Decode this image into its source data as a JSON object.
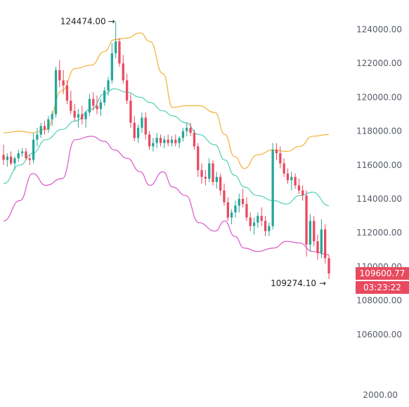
{
  "chart_data": {
    "type": "candlestick",
    "title": "",
    "xlabel": "",
    "ylabel": "",
    "ylim": [
      105000,
      125000
    ],
    "grid": false,
    "y_ticks": [
      "124000.00",
      "122000.00",
      "120000.00",
      "118000.00",
      "116000.00",
      "114000.00",
      "112000.00",
      "110000.00",
      "108000.00",
      "106000.00"
    ],
    "bottom_axis_label": "2000.00",
    "annotations": {
      "high": {
        "text": "124474.00",
        "value": 124474.0
      },
      "low": {
        "text": "109274.10",
        "value": 109274.1
      }
    },
    "last_price": {
      "text": "109600.77",
      "value": 109600.77,
      "color": "#e84a5f"
    },
    "countdown": {
      "text": "03:23:22",
      "color": "#e84a5f"
    },
    "colors": {
      "up": "#26a69a",
      "down": "#e84a5f",
      "upper_band": "#f2b134",
      "middle_band": "#4fd1b5",
      "lower_band": "#d957c8"
    },
    "candles": [
      [
        116600,
        117200,
        116000,
        116300
      ],
      [
        116300,
        116700,
        115900,
        116500
      ],
      [
        116500,
        116800,
        116000,
        116100
      ],
      [
        116100,
        116500,
        115700,
        116400
      ],
      [
        116400,
        116900,
        116200,
        116700
      ],
      [
        116700,
        117000,
        116500,
        116800
      ],
      [
        116800,
        117000,
        116300,
        116400
      ],
      [
        116400,
        116600,
        116000,
        116300
      ],
      [
        116300,
        117900,
        116100,
        117500
      ],
      [
        117500,
        118200,
        117100,
        117800
      ],
      [
        117800,
        118500,
        117600,
        118300
      ],
      [
        118300,
        118600,
        117800,
        118100
      ],
      [
        118100,
        118900,
        117900,
        118700
      ],
      [
        118700,
        119200,
        118300,
        119000
      ],
      [
        119000,
        121800,
        118800,
        121600
      ],
      [
        121600,
        122200,
        120600,
        121000
      ],
      [
        121000,
        121600,
        120200,
        120700
      ],
      [
        120700,
        121000,
        119600,
        119800
      ],
      [
        119800,
        120400,
        119000,
        119200
      ],
      [
        119200,
        119600,
        118600,
        118800
      ],
      [
        118800,
        119300,
        118200,
        119000
      ],
      [
        119000,
        119500,
        118400,
        118700
      ],
      [
        118700,
        119200,
        118200,
        119100
      ],
      [
        119100,
        120200,
        118900,
        119900
      ],
      [
        119900,
        120300,
        119200,
        119500
      ],
      [
        119500,
        120100,
        119000,
        119300
      ],
      [
        119300,
        119900,
        118900,
        119700
      ],
      [
        119700,
        120600,
        119500,
        120400
      ],
      [
        120400,
        121200,
        120100,
        121000
      ],
      [
        121000,
        123200,
        120800,
        122600
      ],
      [
        122600,
        124474,
        122300,
        123300
      ],
      [
        123300,
        123500,
        121800,
        122000
      ],
      [
        122000,
        122500,
        120800,
        121000
      ],
      [
        121000,
        121400,
        119600,
        119800
      ],
      [
        119800,
        120200,
        118200,
        118500
      ],
      [
        118500,
        118900,
        117400,
        117600
      ],
      [
        117600,
        118400,
        117300,
        118200
      ],
      [
        118200,
        119100,
        117900,
        118800
      ],
      [
        118800,
        119100,
        117500,
        117800
      ],
      [
        117800,
        118000,
        116900,
        117100
      ],
      [
        117100,
        117600,
        116800,
        117300
      ],
      [
        117300,
        117900,
        117000,
        117600
      ],
      [
        117600,
        117800,
        117100,
        117300
      ],
      [
        117300,
        117700,
        117000,
        117500
      ],
      [
        117500,
        117800,
        117100,
        117300
      ],
      [
        117300,
        117700,
        117100,
        117500
      ],
      [
        117500,
        117800,
        117100,
        117300
      ],
      [
        117300,
        117700,
        117000,
        117600
      ],
      [
        117600,
        118200,
        117400,
        118000
      ],
      [
        118000,
        118500,
        117700,
        118200
      ],
      [
        118200,
        118500,
        117700,
        117900
      ],
      [
        117900,
        118100,
        116900,
        117100
      ],
      [
        117100,
        117300,
        115300,
        115700
      ],
      [
        115700,
        116100,
        114900,
        115300
      ],
      [
        115300,
        115700,
        114800,
        115200
      ],
      [
        115200,
        116400,
        115000,
        116100
      ],
      [
        116100,
        116300,
        114800,
        115000
      ],
      [
        115000,
        115600,
        114600,
        115300
      ],
      [
        115300,
        115500,
        114200,
        114500
      ],
      [
        114500,
        114900,
        113600,
        113800
      ],
      [
        113800,
        114100,
        112700,
        112900
      ],
      [
        112900,
        113400,
        112500,
        113200
      ],
      [
        113200,
        113900,
        112900,
        113600
      ],
      [
        113600,
        114300,
        113200,
        114000
      ],
      [
        114000,
        114600,
        113500,
        113700
      ],
      [
        113700,
        114100,
        112700,
        112900
      ],
      [
        112900,
        113200,
        112100,
        112400
      ],
      [
        112400,
        112900,
        111900,
        112600
      ],
      [
        112600,
        113200,
        112300,
        113000
      ],
      [
        113000,
        113500,
        112400,
        112700
      ],
      [
        112700,
        113000,
        111800,
        112100
      ],
      [
        112100,
        112600,
        111800,
        112400
      ],
      [
        112400,
        117300,
        112200,
        116900
      ],
      [
        116900,
        117300,
        116300,
        116700
      ],
      [
        116700,
        117100,
        115800,
        116100
      ],
      [
        116100,
        116400,
        115300,
        115500
      ],
      [
        115500,
        115800,
        114900,
        115100
      ],
      [
        115100,
        115600,
        114500,
        115300
      ],
      [
        115300,
        115500,
        114600,
        114800
      ],
      [
        114800,
        115200,
        114300,
        114500
      ],
      [
        114500,
        114800,
        113900,
        114200
      ],
      [
        114200,
        114500,
        110600,
        111300
      ],
      [
        111300,
        113100,
        110900,
        112700
      ],
      [
        112700,
        113000,
        111200,
        111500
      ],
      [
        111500,
        111900,
        110400,
        110800
      ],
      [
        110800,
        112800,
        110500,
        112200
      ],
      [
        112200,
        112500,
        110200,
        110500
      ],
      [
        110500,
        110700,
        109274,
        109600
      ]
    ],
    "upper_band": [
      [
        0,
        117900
      ],
      [
        0.05,
        118000
      ],
      [
        0.09,
        117900
      ],
      [
        0.13,
        118100
      ],
      [
        0.18,
        120400
      ],
      [
        0.22,
        121700
      ],
      [
        0.27,
        121900
      ],
      [
        0.31,
        122700
      ],
      [
        0.34,
        123400
      ],
      [
        0.38,
        123500
      ],
      [
        0.42,
        123800
      ],
      [
        0.45,
        123300
      ],
      [
        0.49,
        121400
      ],
      [
        0.52,
        119400
      ],
      [
        0.56,
        119500
      ],
      [
        0.6,
        119500
      ],
      [
        0.65,
        119100
      ],
      [
        0.68,
        117800
      ],
      [
        0.71,
        116500
      ],
      [
        0.74,
        115800
      ],
      [
        0.78,
        116600
      ],
      [
        0.83,
        116900
      ],
      [
        0.87,
        116800
      ],
      [
        0.91,
        117100
      ],
      [
        0.95,
        117700
      ],
      [
        1,
        117800
      ]
    ],
    "middle_band": [
      [
        0,
        114900
      ],
      [
        0.05,
        116000
      ],
      [
        0.09,
        116700
      ],
      [
        0.13,
        117500
      ],
      [
        0.18,
        118100
      ],
      [
        0.22,
        118600
      ],
      [
        0.27,
        119300
      ],
      [
        0.31,
        120200
      ],
      [
        0.34,
        120500
      ],
      [
        0.38,
        120300
      ],
      [
        0.42,
        120000
      ],
      [
        0.45,
        119700
      ],
      [
        0.49,
        119200
      ],
      [
        0.52,
        118900
      ],
      [
        0.56,
        118500
      ],
      [
        0.6,
        117800
      ],
      [
        0.65,
        117200
      ],
      [
        0.68,
        116300
      ],
      [
        0.71,
        115400
      ],
      [
        0.74,
        114700
      ],
      [
        0.78,
        114200
      ],
      [
        0.83,
        113900
      ],
      [
        0.87,
        113700
      ],
      [
        0.91,
        114200
      ],
      [
        0.95,
        114400
      ],
      [
        1,
        113600
      ]
    ],
    "lower_band": [
      [
        0,
        112700
      ],
      [
        0.05,
        113900
      ],
      [
        0.09,
        115500
      ],
      [
        0.13,
        114800
      ],
      [
        0.18,
        115200
      ],
      [
        0.22,
        117500
      ],
      [
        0.27,
        117700
      ],
      [
        0.31,
        117400
      ],
      [
        0.34,
        116900
      ],
      [
        0.38,
        116400
      ],
      [
        0.42,
        115600
      ],
      [
        0.45,
        114800
      ],
      [
        0.49,
        115600
      ],
      [
        0.52,
        114700
      ],
      [
        0.56,
        114200
      ],
      [
        0.6,
        112600
      ],
      [
        0.65,
        112100
      ],
      [
        0.68,
        112700
      ],
      [
        0.71,
        111800
      ],
      [
        0.74,
        111100
      ],
      [
        0.78,
        110900
      ],
      [
        0.83,
        111100
      ],
      [
        0.87,
        111500
      ],
      [
        0.91,
        111400
      ],
      [
        0.95,
        110900
      ],
      [
        1,
        110700
      ]
    ]
  }
}
